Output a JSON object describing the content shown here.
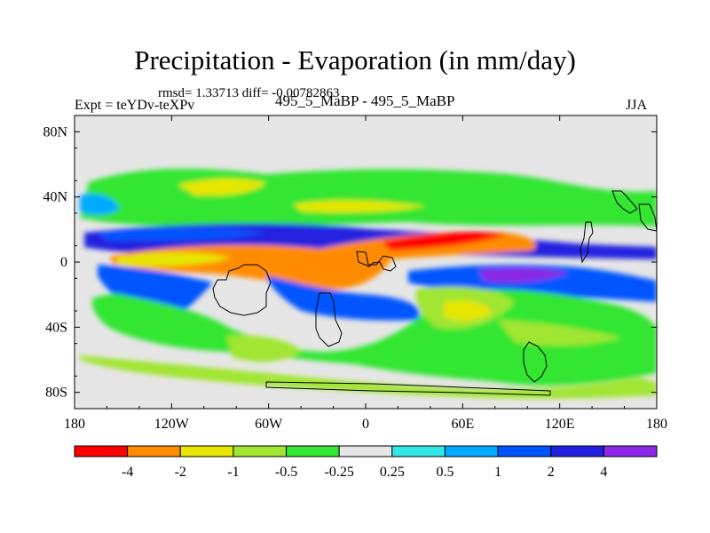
{
  "chart_data": {
    "type": "heatmap",
    "title": "Precipitation - Evaporation (in mm/day)",
    "stats_text": "rmsd= 1.33713 diff= -0.00782863",
    "left_label": "Expt = teYDv-teXPv",
    "center_label": "495_5_MaBP - 495_5_MaBP",
    "right_label": "JJA",
    "x_ticks": [
      {
        "value": -180,
        "label": "180"
      },
      {
        "value": -120,
        "label": "120W"
      },
      {
        "value": -60,
        "label": "60W"
      },
      {
        "value": 0,
        "label": "0"
      },
      {
        "value": 60,
        "label": "60E"
      },
      {
        "value": 120,
        "label": "120E"
      },
      {
        "value": 180,
        "label": "180"
      }
    ],
    "y_ticks": [
      {
        "value": 80,
        "label": "80N"
      },
      {
        "value": 40,
        "label": "40N"
      },
      {
        "value": 0,
        "label": "0"
      },
      {
        "value": -40,
        "label": "40S"
      },
      {
        "value": -80,
        "label": "80S"
      }
    ],
    "xlim": [
      -180,
      180
    ],
    "ylim": [
      -90,
      90
    ],
    "colorbar": {
      "colors": [
        "#ff0000",
        "#ff8c00",
        "#e6e600",
        "#a0e632",
        "#32e632",
        "#e6e6e6",
        "#32e6e6",
        "#00aaff",
        "#0055ff",
        "#2020e0",
        "#8c28e6"
      ],
      "tick_labels": [
        "-4",
        "-2",
        "-1",
        "-0.5",
        "-0.25",
        "0.25",
        "0.5",
        "1",
        "2",
        "4"
      ]
    },
    "field_bands": [
      {
        "name": "northern-extratropics-band",
        "level": "-0.5",
        "color": "#32e632",
        "lat_range": [
          22,
          45
        ],
        "lon_range": [
          -170,
          130
        ]
      },
      {
        "name": "north-equatorial-moist-band",
        "level": "2",
        "color": "#2020e0",
        "lat_range": [
          2,
          12
        ],
        "lon_range": [
          -170,
          160
        ]
      },
      {
        "name": "equatorial-dry-band",
        "level": "-2",
        "color": "#ff8c00",
        "lat_range": [
          -8,
          5
        ],
        "lon_range": [
          -160,
          40
        ]
      },
      {
        "name": "southern-tropics-moist-band",
        "level": "1",
        "color": "#0055ff",
        "lat_range": [
          -20,
          -5
        ],
        "lon_range": [
          -140,
          150
        ]
      },
      {
        "name": "southern-subtropics-band",
        "level": "-0.5",
        "color": "#32e632",
        "lat_range": [
          -60,
          -30
        ],
        "lon_range": [
          -150,
          170
        ]
      }
    ]
  }
}
